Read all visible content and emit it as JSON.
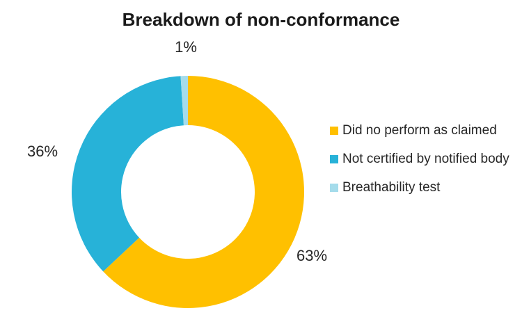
{
  "title": "Breakdown of non-conformance",
  "chart_data": {
    "type": "pie",
    "subtype": "donut",
    "title": "Breakdown of non-conformance",
    "direction": "clockwise",
    "start_angle_deg": 0,
    "donut_hole_ratio": 0.57,
    "legend_position": "right",
    "background_color": "#ffffff",
    "slices": [
      {
        "name": "Did no perform as claimed",
        "value": 63,
        "label": "63%",
        "color": "#FFC000"
      },
      {
        "name": "Not certified by notified body",
        "value": 36,
        "label": "36%",
        "color": "#27B2D8"
      },
      {
        "name": "Breathability test",
        "value": 1,
        "label": "1%",
        "color": "#A5DCEB"
      }
    ]
  }
}
